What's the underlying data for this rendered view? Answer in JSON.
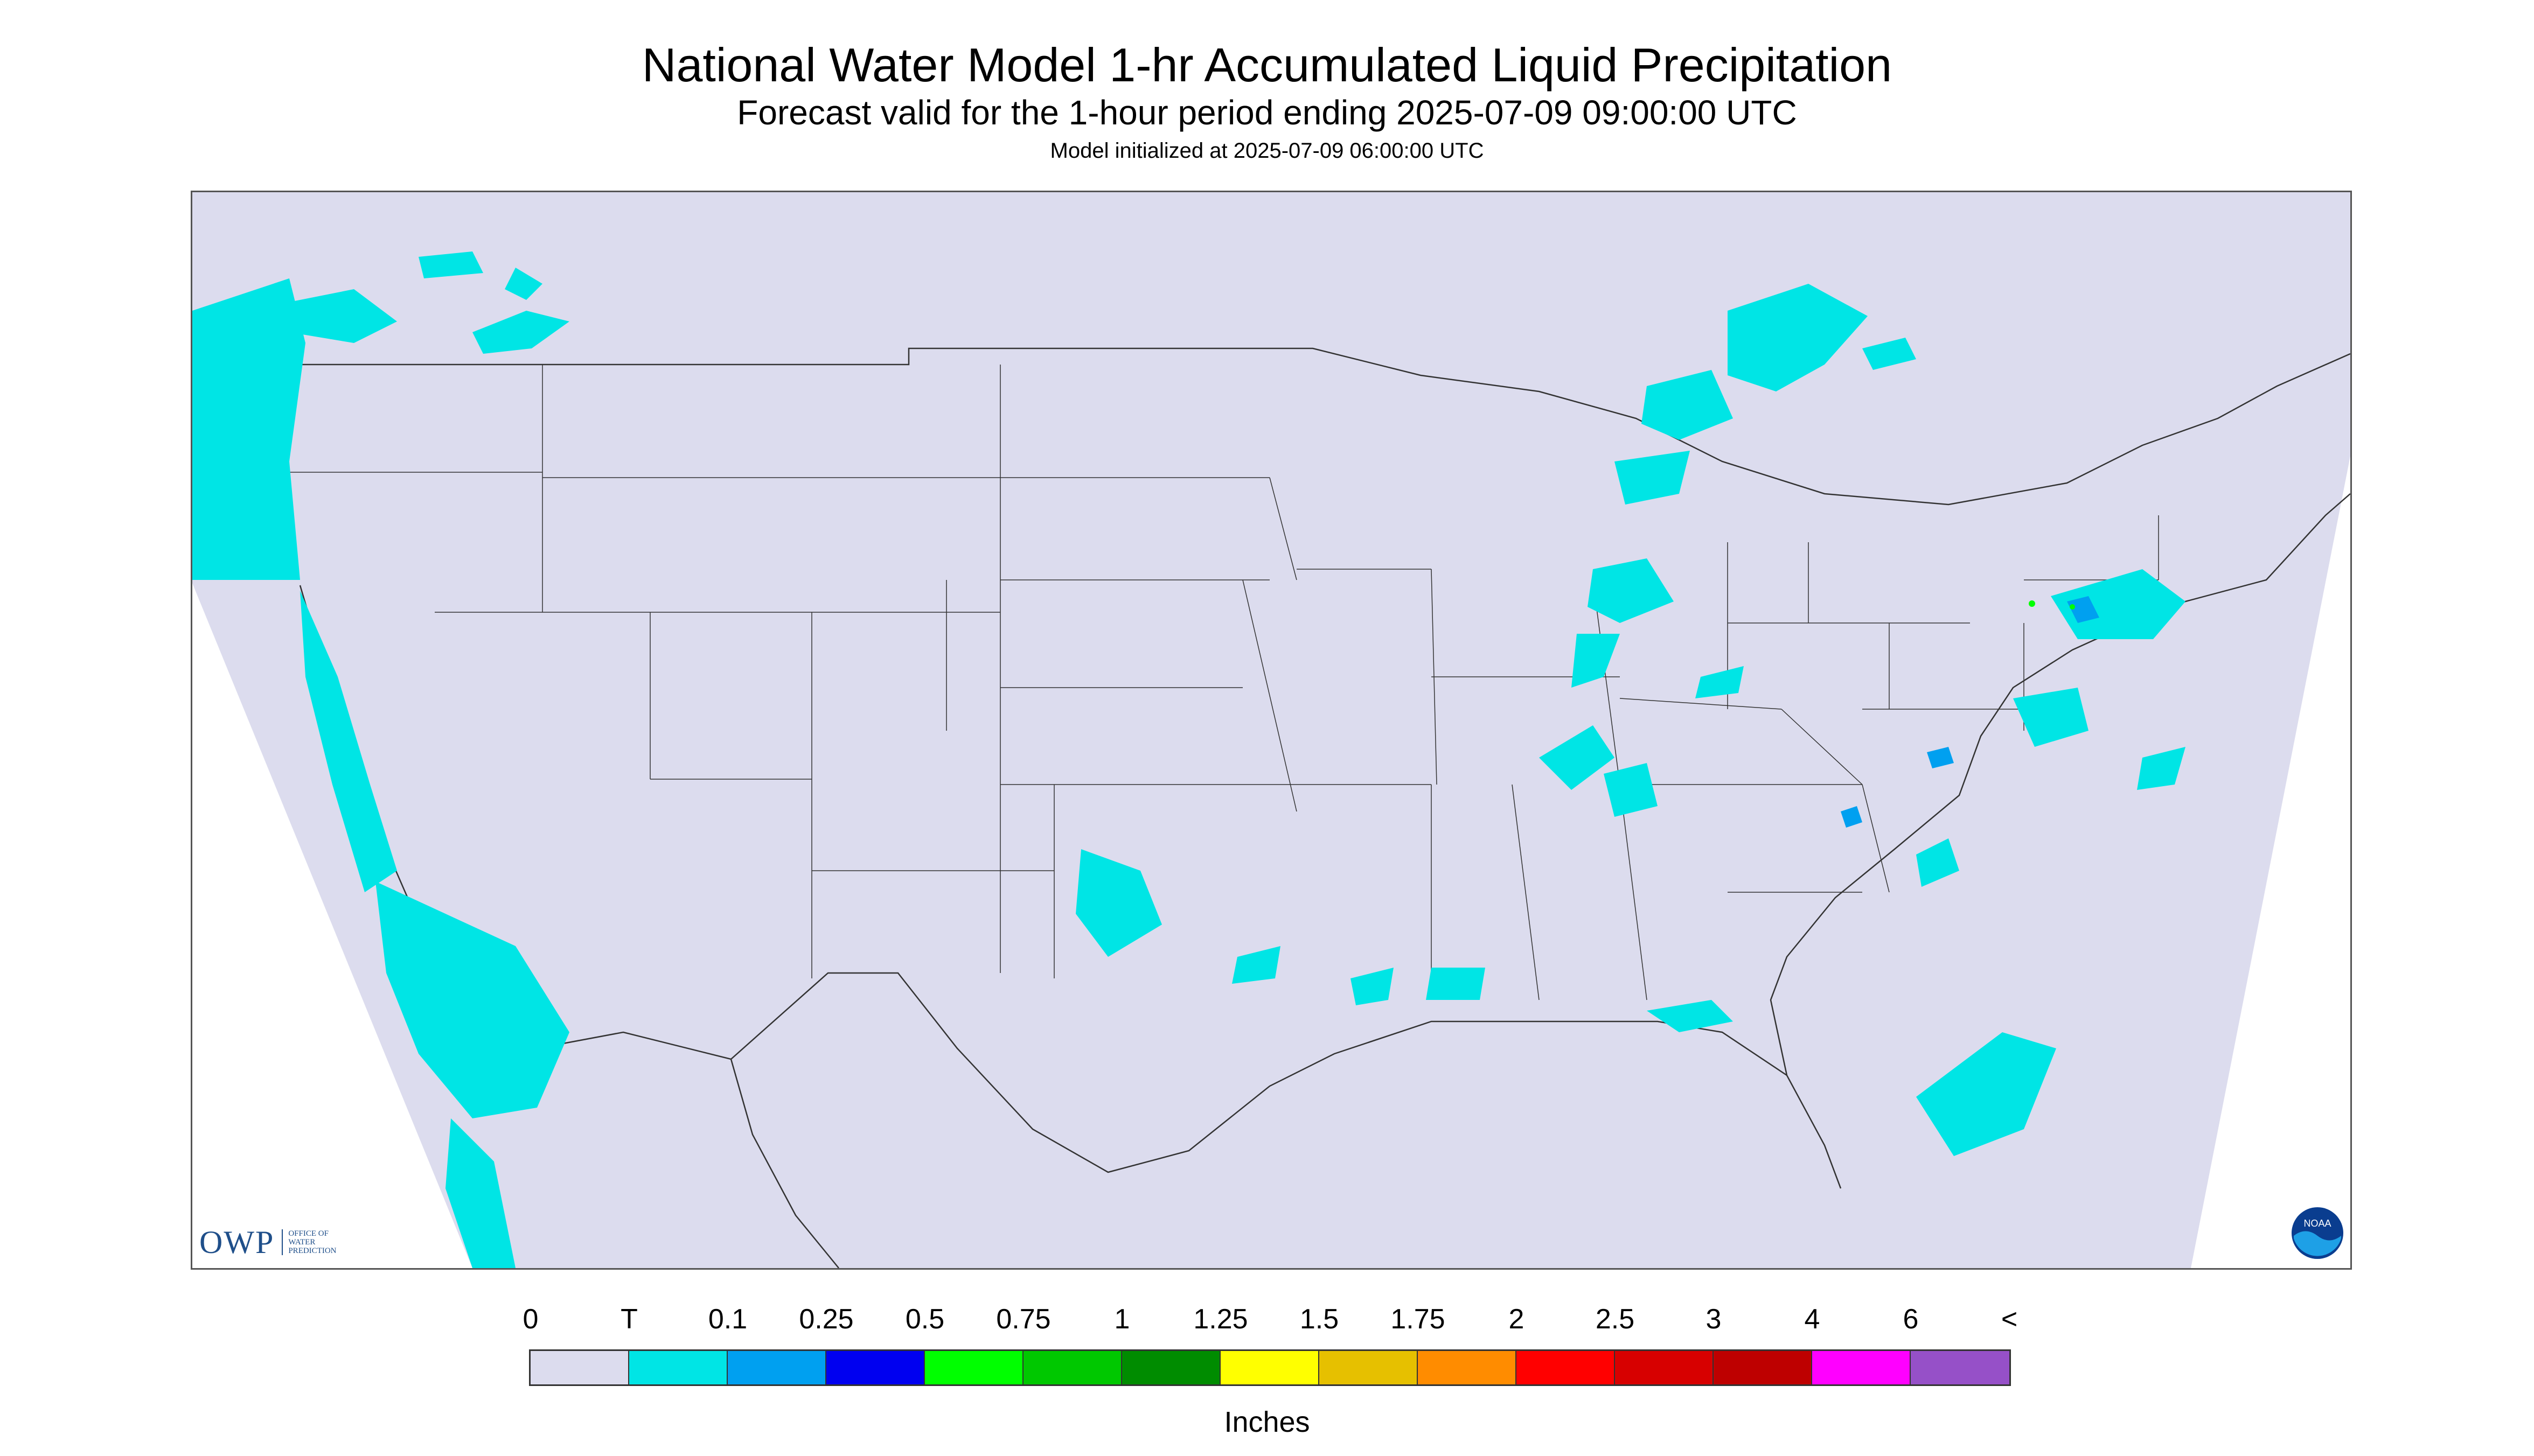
{
  "header": {
    "title": "National Water Model 1-hr Accumulated Liquid Precipitation",
    "subtitle": "Forecast valid for the 1-hour period ending 2025-07-09 09:00:00 UTC",
    "init": "Model initialized at 2025-07-09 06:00:00 UTC"
  },
  "map": {
    "background_color": "#dcdcee",
    "outside_domain_color": "#ffffff",
    "boundary_color": "#333333",
    "precip_regions": [
      {
        "area": "Pacific Northwest coast",
        "category": "T"
      },
      {
        "area": "California offshore",
        "category": "T"
      },
      {
        "area": "Baja California offshore",
        "category": "T"
      },
      {
        "area": "Southern Canada prairies",
        "category": "T"
      },
      {
        "area": "Ontario / Quebec",
        "category": "T"
      },
      {
        "area": "Great Lakes region",
        "category": "T"
      },
      {
        "area": "Ohio Valley",
        "category": "T"
      },
      {
        "area": "Texas / Oklahoma",
        "category": "T"
      },
      {
        "area": "Gulf Coast",
        "category": "T"
      },
      {
        "area": "Mid-Atlantic / Chesapeake",
        "category": "0.1"
      },
      {
        "area": "New England",
        "category": "0.5"
      },
      {
        "area": "Carolina coast",
        "category": "0.1"
      },
      {
        "area": "Western Atlantic",
        "category": "T"
      }
    ]
  },
  "logos": {
    "owp_mark": "OWP",
    "owp_text": [
      "OFFICE OF",
      "WATER",
      "PREDICTION"
    ],
    "noaa_text": "NOAA"
  },
  "legend": {
    "labels": [
      "0",
      "T",
      "0.1",
      "0.25",
      "0.5",
      "0.75",
      "1",
      "1.25",
      "1.5",
      "1.75",
      "2",
      "2.5",
      "3",
      "4",
      "6",
      "<"
    ],
    "colors": [
      "#dcdcee",
      "#00e5e5",
      "#00a0f0",
      "#0000f0",
      "#00ff00",
      "#00c800",
      "#008c00",
      "#ffff00",
      "#e6c000",
      "#ff8c00",
      "#ff0000",
      "#d70000",
      "#be0000",
      "#ff00ff",
      "#9650c8"
    ],
    "units": "Inches"
  }
}
